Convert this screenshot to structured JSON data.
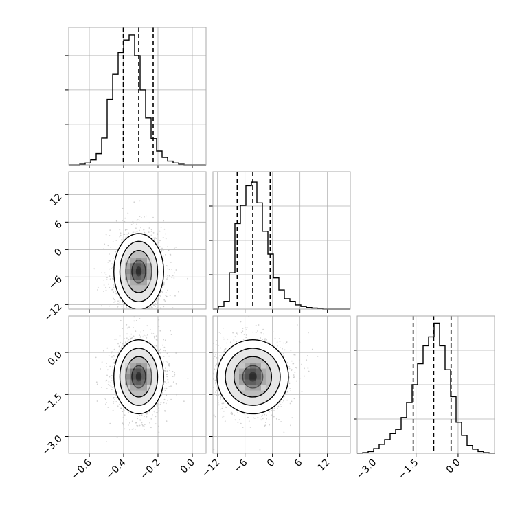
{
  "chart_data": {
    "type": "corner",
    "grid": true,
    "colors": {
      "line": "#000000",
      "grid": "#b0b0b0",
      "points": "#bdbdbd",
      "frame": "#aaaaaa"
    },
    "params": [
      {
        "key": "p0",
        "range": [
          -0.72,
          0.08
        ],
        "ticks": [
          -0.6,
          -0.4,
          -0.2,
          0.0
        ],
        "tick_labels": [
          "−0.6",
          "−0.4",
          "−0.2",
          "0.0"
        ]
      },
      {
        "key": "p1",
        "range": [
          -13.0,
          17.0
        ],
        "ticks": [
          -12,
          -6,
          0,
          6,
          12
        ],
        "tick_labels": [
          "−12",
          "−6",
          "0",
          "6",
          "12"
        ]
      },
      {
        "key": "p2",
        "range": [
          -3.6,
          1.3
        ],
        "ticks": [
          -3.0,
          -1.5,
          0.0
        ],
        "tick_labels": [
          "−3.0",
          "−1.5",
          "0.0"
        ]
      }
    ],
    "histograms": [
      {
        "param": 0,
        "bin_edges": [
          -0.72,
          -0.688,
          -0.656,
          -0.624,
          -0.592,
          -0.56,
          -0.528,
          -0.496,
          -0.464,
          -0.432,
          -0.4,
          -0.368,
          -0.336,
          -0.304,
          -0.272,
          -0.24,
          -0.208,
          -0.176,
          -0.144,
          -0.112,
          -0.08,
          -0.048,
          -0.016,
          0.016,
          0.048,
          0.08
        ],
        "counts": [
          0,
          0,
          1,
          3,
          8,
          18,
          43,
          105,
          145,
          180,
          200,
          208,
          175,
          120,
          75,
          42,
          22,
          12,
          6,
          3,
          1,
          0,
          0,
          0,
          0
        ],
        "ylim": [
          0,
          220
        ],
        "quantiles": [
          -0.402,
          -0.312,
          -0.228
        ]
      },
      {
        "param": 1,
        "bin_edges": [
          -13.0,
          -11.8,
          -10.6,
          -9.4,
          -8.2,
          -7.0,
          -5.8,
          -4.6,
          -3.4,
          -2.2,
          -1.0,
          0.2,
          1.4,
          2.6,
          3.8,
          5.0,
          6.2,
          7.4,
          8.6,
          9.8,
          11.0,
          12.2,
          13.4,
          14.6,
          15.8,
          17.0
        ],
        "counts": [
          0,
          5,
          15,
          70,
          165,
          200,
          238,
          245,
          205,
          150,
          106,
          60,
          37,
          20,
          15,
          8,
          5,
          3,
          2,
          1,
          0,
          0,
          0,
          0,
          0
        ],
        "ylim": [
          0,
          265
        ],
        "quantiles": [
          -7.7,
          -4.3,
          -0.5
        ]
      },
      {
        "param": 2,
        "bin_edges": [
          -3.6,
          -3.404,
          -3.208,
          -3.012,
          -2.816,
          -2.62,
          -2.424,
          -2.228,
          -2.032,
          -1.836,
          -1.64,
          -1.444,
          -1.248,
          -1.052,
          -0.856,
          -0.66,
          -0.464,
          -0.268,
          -0.072,
          0.124,
          0.32,
          0.516,
          0.712,
          0.908,
          1.104,
          1.3
        ],
        "counts": [
          0,
          1,
          3,
          8,
          15,
          23,
          33,
          40,
          60,
          85,
          115,
          150,
          180,
          195,
          218,
          180,
          140,
          95,
          52,
          30,
          13,
          7,
          3,
          1,
          0
        ],
        "ylim": [
          0,
          230
        ],
        "quantiles": [
          -1.6,
          -0.87,
          -0.25
        ]
      }
    ],
    "scatter_panels": [
      {
        "x_param": 0,
        "y_param": 1,
        "center": [
          -0.312,
          -4.8
        ],
        "contour_levels": [
          {
            "rx": 0.145,
            "ry": 8.3,
            "fill": "#ffffff"
          },
          {
            "rx": 0.11,
            "ry": 6.6,
            "fill": "#e6e6e6"
          },
          {
            "rx": 0.075,
            "ry": 4.6,
            "fill": "#bdbdbd"
          },
          {
            "rx": 0.04,
            "ry": 2.5,
            "fill": "#7a7a7a"
          },
          {
            "rx": 0.017,
            "ry": 1.1,
            "fill": "#333333"
          }
        ]
      },
      {
        "x_param": 0,
        "y_param": 2,
        "center": [
          -0.312,
          -0.87
        ],
        "contour_levels": [
          {
            "rx": 0.145,
            "ry": 1.32,
            "fill": "#ffffff"
          },
          {
            "rx": 0.11,
            "ry": 1.02,
            "fill": "#e6e6e6"
          },
          {
            "rx": 0.075,
            "ry": 0.72,
            "fill": "#bdbdbd"
          },
          {
            "rx": 0.04,
            "ry": 0.4,
            "fill": "#7a7a7a"
          },
          {
            "rx": 0.017,
            "ry": 0.17,
            "fill": "#333333"
          }
        ]
      },
      {
        "x_param": 1,
        "y_param": 2,
        "center": [
          -4.3,
          -0.87
        ],
        "contour_levels": [
          {
            "rx": 7.8,
            "ry": 1.32,
            "fill": "#ffffff"
          },
          {
            "rx": 6.0,
            "ry": 1.02,
            "fill": "#e6e6e6"
          },
          {
            "rx": 4.1,
            "ry": 0.72,
            "fill": "#bdbdbd"
          },
          {
            "rx": 2.2,
            "ry": 0.4,
            "fill": "#7a7a7a"
          },
          {
            "rx": 0.9,
            "ry": 0.17,
            "fill": "#333333"
          }
        ]
      }
    ]
  }
}
